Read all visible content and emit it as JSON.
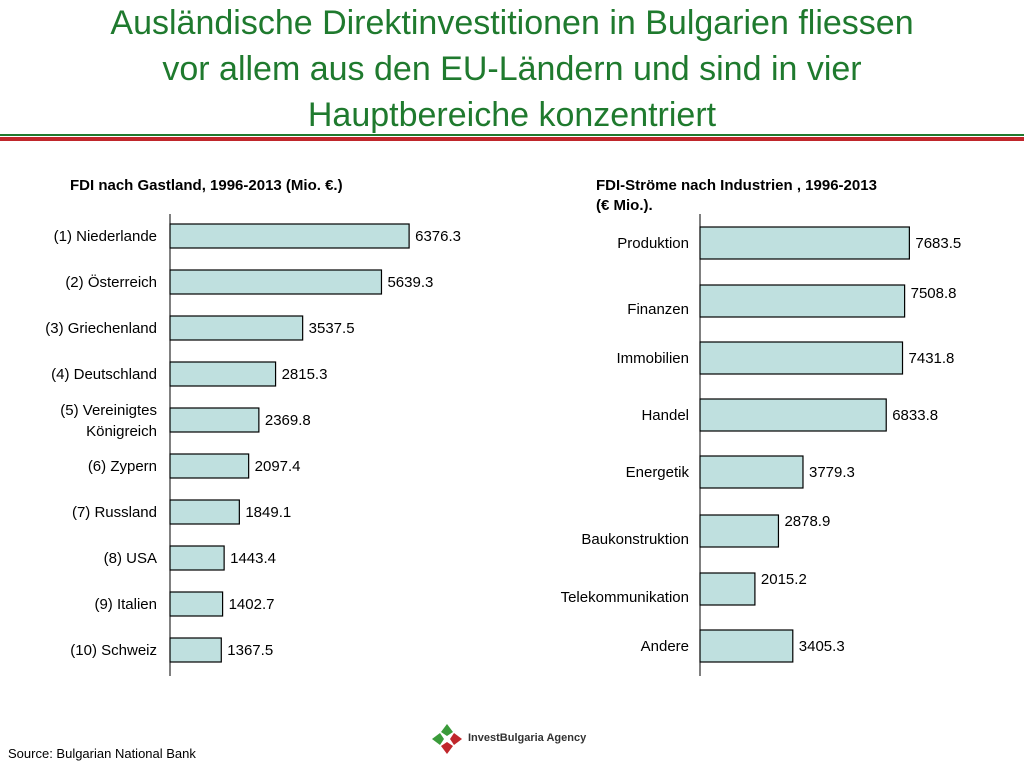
{
  "page": {
    "title_lines": [
      "Ausländische Direktinvestitionen in Bulgarien fliessen",
      "vor allem aus den EU-Ländern und sind in vier",
      "Hauptbereiche konzentriert"
    ],
    "source": "Source: Bulgarian National Bank",
    "logo_text": "InvestBulgaria Agency"
  },
  "colors": {
    "title": "#1f7a2e",
    "bar_fill": "#bfe0df",
    "bar_stroke": "#000000",
    "rule_green": "#1f7a2e",
    "rule_red": "#c0262b"
  },
  "chart_data": [
    {
      "type": "bar",
      "orientation": "horizontal",
      "title_lines": [
        "FDI nach Gastland, 1996-2013 (Mio. €.)"
      ],
      "categories": [
        [
          "(1) Niederlande"
        ],
        [
          "(2) Österreich"
        ],
        [
          "(3) Griechenland"
        ],
        [
          "(4) Deutschland"
        ],
        [
          "(5) Vereinigtes",
          "Königreich"
        ],
        [
          "(6) Zypern"
        ],
        [
          "(7) Russland"
        ],
        [
          "(8) USA"
        ],
        [
          "(9) Italien"
        ],
        [
          "(10) Schweiz"
        ]
      ],
      "values": [
        6376.3,
        5639.3,
        3537.5,
        2815.3,
        2369.8,
        2097.4,
        1849.1,
        1443.4,
        1402.7,
        1367.5
      ],
      "value_labels": [
        "6376.3",
        "5639.3",
        "3537.5",
        "2815.3",
        "2369.8",
        "2097.4",
        "1849.1",
        "1443.4",
        "1402.7",
        "1367.5"
      ],
      "xlim": [
        0,
        8000
      ],
      "grid": false,
      "legend": "none"
    },
    {
      "type": "bar",
      "orientation": "horizontal",
      "title_lines": [
        "FDI-Ströme nach Industrien , 1996-2013",
        "(€ Mio.)."
      ],
      "categories": [
        [
          "Produktion"
        ],
        [
          "Finanzen"
        ],
        [
          "Immobilien"
        ],
        [
          "Handel"
        ],
        [
          "Energetik"
        ],
        [
          "Baukonstruktion"
        ],
        [
          "Telekommunikation"
        ],
        [
          "Andere"
        ]
      ],
      "values": [
        7683.5,
        7508.8,
        7431.8,
        6833.8,
        3779.3,
        2878.9,
        2015.2,
        3405.3
      ],
      "value_labels": [
        "7683.5",
        "7508.8",
        "7431.8",
        "6833.8",
        "3779.3",
        "2878.9",
        "2015.2",
        "3405.3"
      ],
      "xlim": [
        0,
        8000
      ],
      "grid": false,
      "legend": "none"
    }
  ]
}
